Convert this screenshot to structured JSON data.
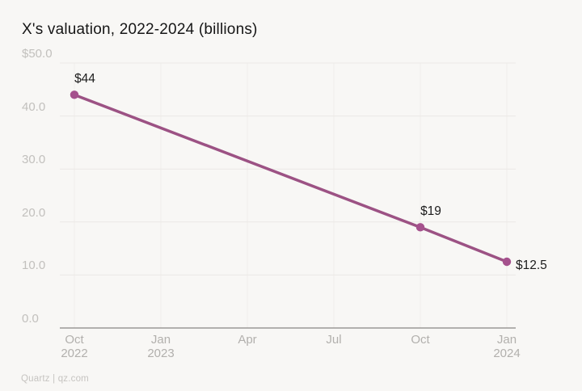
{
  "page": {
    "background": "#f8f7f5"
  },
  "header": {
    "title": "X's valuation, 2022-2024 (billions)"
  },
  "footer": {
    "source": "Quartz | qz.com"
  },
  "chart_data": {
    "type": "line",
    "title": "X's valuation, 2022-2024 (billions)",
    "xlabel": "",
    "ylabel": "",
    "ylim": [
      0,
      50
    ],
    "x_months_range": [
      0,
      15
    ],
    "grid": true,
    "legend": "none",
    "colors": {
      "line": "#9c5284",
      "marker": "#a5518d",
      "title": "#161616",
      "data_label": "#1c1c1c",
      "grid_line": "#ebe9e6",
      "vertical_grid_line": "#efedea",
      "axis_line": "#9b9996",
      "y_tick_label": "#c2c0bd",
      "x_tick_label": "#b2b0ad",
      "source_text": "#c6c4c1",
      "background": "#f8f7f5"
    },
    "y_ticks": [
      {
        "value": 50,
        "label": "$50.0"
      },
      {
        "value": 40,
        "label": "40.0"
      },
      {
        "value": 30,
        "label": "30.0"
      },
      {
        "value": 20,
        "label": "20.0"
      },
      {
        "value": 10,
        "label": "10.0"
      },
      {
        "value": 0,
        "label": "0.0"
      }
    ],
    "x_ticks": [
      {
        "x_months": 0,
        "line1": "Oct",
        "line2": "2022"
      },
      {
        "x_months": 3,
        "line1": "Jan",
        "line2": "2023"
      },
      {
        "x_months": 6,
        "line1": "Apr",
        "line2": ""
      },
      {
        "x_months": 9,
        "line1": "Jul",
        "line2": ""
      },
      {
        "x_months": 12,
        "line1": "Oct",
        "line2": ""
      },
      {
        "x_months": 15,
        "line1": "Jan",
        "line2": "2024"
      }
    ],
    "series": [
      {
        "name": "X valuation (billions USD)",
        "points": [
          {
            "date": "Oct 2022",
            "x_months": 0,
            "value": 44,
            "label": "$44",
            "label_placement": "above"
          },
          {
            "date": "Oct 2023",
            "x_months": 12,
            "value": 19,
            "label": "$19",
            "label_placement": "above"
          },
          {
            "date": "Jan 2024",
            "x_months": 15,
            "value": 12.5,
            "label": "$12.5",
            "label_placement": "right"
          }
        ]
      }
    ],
    "source": "Quartz | qz.com"
  }
}
